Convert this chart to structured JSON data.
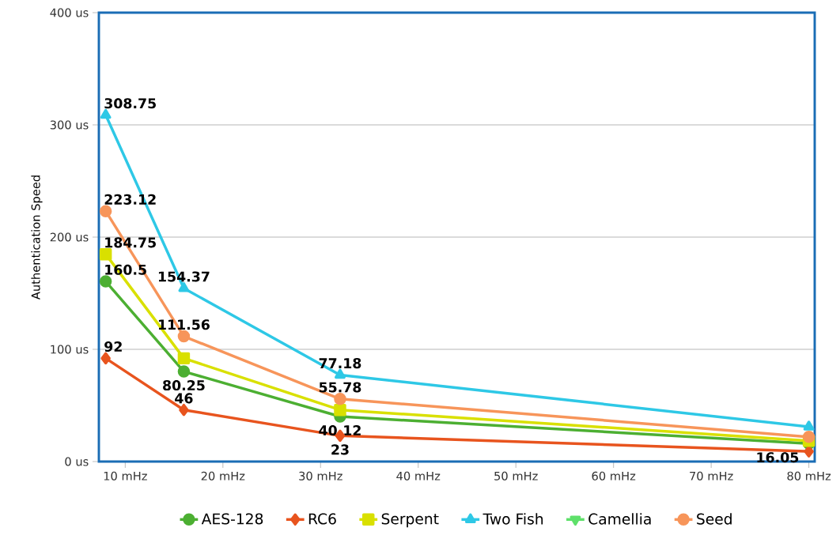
{
  "chart_data": {
    "type": "line",
    "ylabel": "Authentication Speed",
    "x": [
      8,
      16,
      32,
      80
    ],
    "xlim": [
      7.3,
      80.6
    ],
    "ylim": [
      0,
      400
    ],
    "xticks": [
      {
        "value": 10,
        "label": "10 mHz"
      },
      {
        "value": 20,
        "label": "20 mHz"
      },
      {
        "value": 30,
        "label": "30 mHz"
      },
      {
        "value": 40,
        "label": "40 mHz"
      },
      {
        "value": 50,
        "label": "50 mHz"
      },
      {
        "value": 60,
        "label": "60 mHz"
      },
      {
        "value": 70,
        "label": "70 mHz"
      },
      {
        "value": 80,
        "label": "80 mHz"
      }
    ],
    "yticks": [
      {
        "value": 0,
        "label": "0 us"
      },
      {
        "value": 100,
        "label": "100 us"
      },
      {
        "value": 200,
        "label": "200 us"
      },
      {
        "value": 300,
        "label": "300 us"
      },
      {
        "value": 400,
        "label": "400 us"
      }
    ],
    "grid": "y",
    "legend": "bottom",
    "series": [
      {
        "name": "AES-128",
        "color": "#4caf32",
        "marker": "circle",
        "values": [
          160.5,
          80.25,
          40.12,
          16.05
        ],
        "value_labels": [
          "160.5",
          "80.25",
          "40.12",
          "16.05"
        ]
      },
      {
        "name": "RC6",
        "color": "#e8541e",
        "marker": "diamond",
        "values": [
          92,
          46,
          23,
          9
        ],
        "value_labels": [
          "92",
          "46",
          "23",
          null
        ]
      },
      {
        "name": "Serpent",
        "color": "#d9e000",
        "marker": "square",
        "values": [
          184.75,
          92,
          46,
          18.5
        ],
        "value_labels": [
          "184.75",
          null,
          null,
          null
        ]
      },
      {
        "name": "Two Fish",
        "color": "#2ec8e6",
        "marker": "triangle",
        "values": [
          308.75,
          154.37,
          77.18,
          31
        ],
        "value_labels": [
          "308.75",
          "154.37",
          "77.18",
          null
        ]
      },
      {
        "name": "Camellia",
        "color": "#5ee06a",
        "marker": "triangle down",
        "values": [
          null,
          null,
          null,
          null
        ]
      },
      {
        "name": "Seed",
        "color": "#f7955a",
        "marker": "circle",
        "values": [
          223.12,
          111.56,
          55.78,
          22
        ],
        "value_labels": [
          "223.12",
          "111.56",
          "55.78",
          null
        ]
      }
    ]
  }
}
